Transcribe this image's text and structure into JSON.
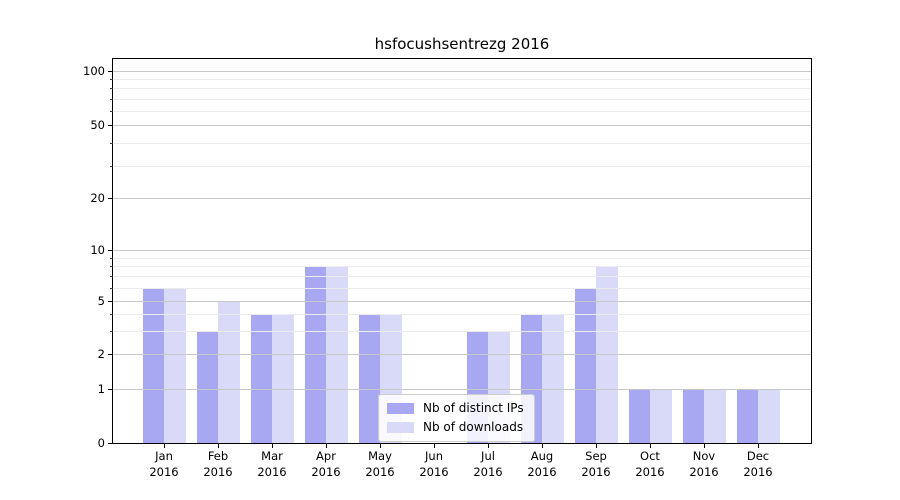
{
  "title": "hsfocushsentrezg 2016",
  "chart_data": {
    "type": "bar",
    "title": "hsfocushsentrezg 2016",
    "categories": [
      "Jan",
      "Feb",
      "Mar",
      "Apr",
      "May",
      "Jun",
      "Jul",
      "Aug",
      "Sep",
      "Oct",
      "Nov",
      "Dec"
    ],
    "year_label": "2016",
    "series": [
      {
        "name": "Nb of distinct IPs",
        "color": "#a8a8f2",
        "values": [
          6,
          3,
          4,
          8,
          4,
          0,
          3,
          4,
          6,
          1,
          1,
          1
        ]
      },
      {
        "name": "Nb of downloads",
        "color": "#d9d9f8",
        "values": [
          6,
          5,
          4,
          8,
          4,
          0,
          3,
          4,
          8,
          1,
          1,
          1
        ]
      }
    ],
    "yscale": "log",
    "ylim": [
      0,
      100
    ],
    "yticks_major": [
      0,
      1,
      2,
      5,
      10,
      20,
      50,
      100
    ],
    "yticks_minor": [
      3,
      4,
      6,
      7,
      8,
      9,
      30,
      40,
      60,
      70,
      80,
      90
    ],
    "grid": true,
    "legend_position": "bottom-center"
  },
  "legend": {
    "items": [
      {
        "label": "Nb of distinct IPs"
      },
      {
        "label": "Nb of downloads"
      }
    ]
  },
  "colors": {
    "background": "#ffffff",
    "axis": "#000000",
    "bar_distinct_ips": "#a8a8f2",
    "bar_downloads": "#d9d9f8",
    "grid_major": "#c9c9c9",
    "grid_minor": "#ebebeb",
    "legend_border": "#cccccc"
  }
}
